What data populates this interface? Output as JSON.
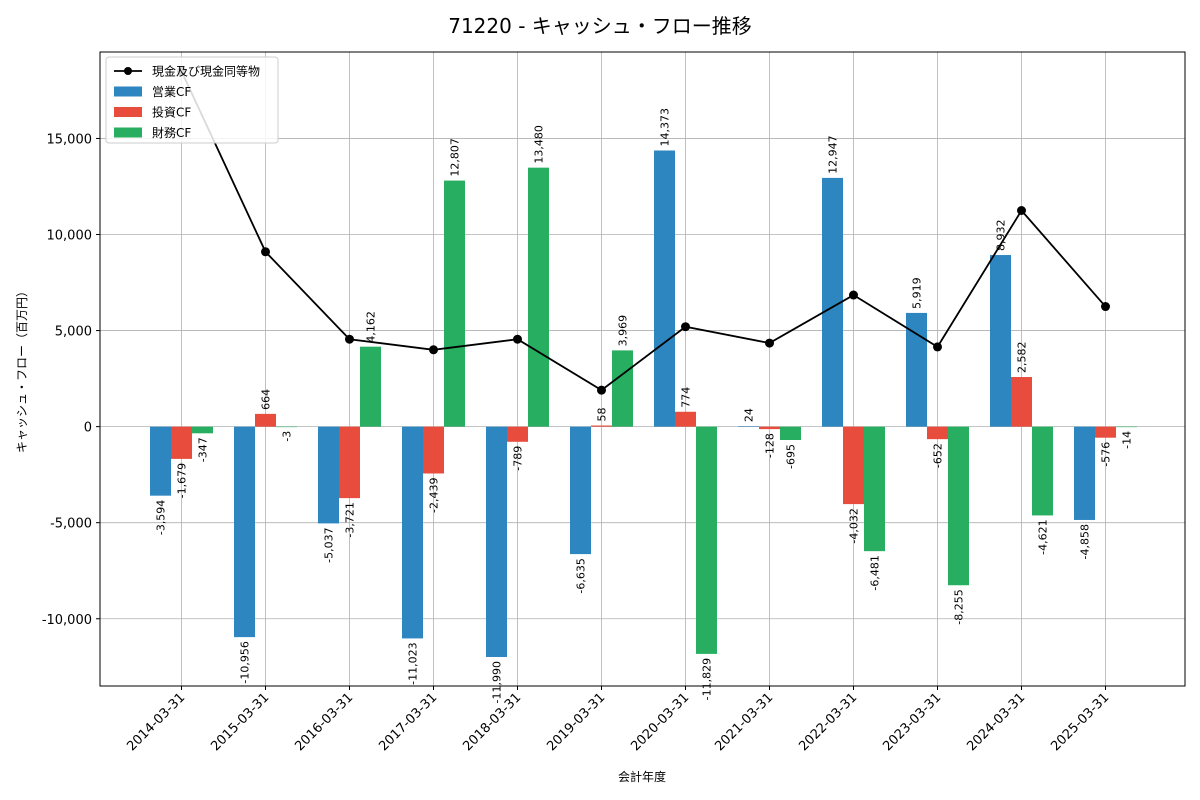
{
  "chart_data": {
    "type": "bar",
    "title": "71220 - キャッシュ・フロー推移",
    "xlabel": "会計年度",
    "ylabel": "キャッシュ・フロー（百万円）",
    "ylim": [
      -13500,
      19500
    ],
    "yticks": [
      -10000,
      -5000,
      0,
      5000,
      10000,
      15000
    ],
    "ytick_labels": [
      "-10,000",
      "-5,000",
      "0",
      "5,000",
      "10,000",
      "15,000"
    ],
    "grid": true,
    "legend_position": "top-left",
    "categories": [
      "2014-03-31",
      "2015-03-31",
      "2016-03-31",
      "2017-03-31",
      "2018-03-31",
      "2019-03-31",
      "2020-03-31",
      "2021-03-31",
      "2022-03-31",
      "2023-03-31",
      "2024-03-31",
      "2025-03-31"
    ],
    "series": [
      {
        "name": "営業CF",
        "kind": "bar",
        "color": "#2e86c1",
        "values": [
          -3594,
          -10956,
          -5037,
          -11023,
          -11990,
          -6635,
          14373,
          24,
          12947,
          5919,
          8932,
          -4858
        ],
        "labels": [
          "-3,594",
          "-10,956",
          "-5,037",
          "-11,023",
          "-11,990",
          "-6,635",
          "14,373",
          "24",
          "12,947",
          "5,919",
          "8,932",
          "-4,858"
        ]
      },
      {
        "name": "投資CF",
        "kind": "bar",
        "color": "#e74c3c",
        "values": [
          -1679,
          664,
          -3721,
          -2439,
          -789,
          58,
          774,
          -128,
          -4032,
          -652,
          2582,
          -576
        ],
        "labels": [
          "-1,679",
          "664",
          "-3,721",
          "-2,439",
          "-789",
          "58",
          "774",
          "-128",
          "-4,032",
          "-652",
          "2,582",
          "-576"
        ]
      },
      {
        "name": "財務CF",
        "kind": "bar",
        "color": "#27ae60",
        "values": [
          -347,
          -3,
          4162,
          12807,
          13480,
          3969,
          -11829,
          -695,
          -6481,
          -8255,
          -4621,
          -14
        ],
        "labels": [
          "-347",
          "-3",
          "4,162",
          "12,807",
          "13,480",
          "3,969",
          "-11,829",
          "-695",
          "-6,481",
          "-8,255",
          "-4,621",
          "-14"
        ]
      },
      {
        "name": "現金及び現金同等物",
        "kind": "line",
        "color": "#000000",
        "values": [
          18500,
          9100,
          4550,
          4000,
          4550,
          1900,
          5200,
          4350,
          6850,
          4150,
          11250,
          6250
        ]
      }
    ]
  }
}
